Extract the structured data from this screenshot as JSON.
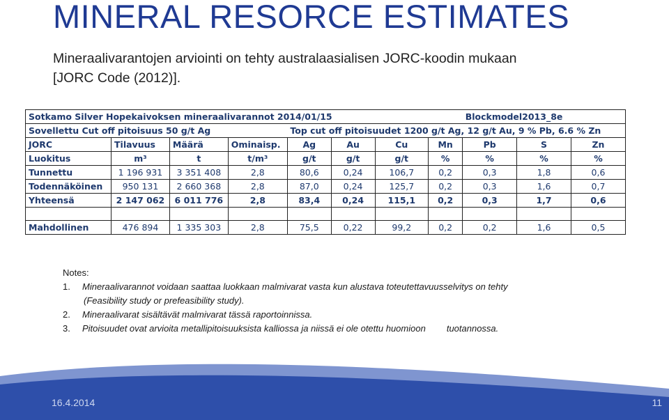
{
  "slide": {
    "title": "MINERAL RESORCE ESTIMATES",
    "subtitle_line1": "Mineraalivarantojen arviointi on tehty australaasialisen JORC-koodin mukaan",
    "subtitle_line2": "[JORC Code (2012)].",
    "date": "16.4.2014",
    "page_number": "11"
  },
  "table": {
    "title_left": "Sotkamo Silver Hopekaivoksen mineraalivarannot 2014/01/15",
    "title_right": "Blockmodel2013_8e",
    "cutoff_left": "Sovellettu Cut off pitoisuus 50 g/t Ag",
    "cutoff_right": "Top cut off pitoisuudet 1200 g/t Ag, 12 g/t Au, 9 % Pb, 6.6 % Zn",
    "header1": [
      "JORC",
      "Tilavuus",
      "Määrä",
      "Ominaisp.",
      "Ag",
      "Au",
      "Cu",
      "Mn",
      "Pb",
      "S",
      "Zn"
    ],
    "header2": [
      "Luokitus",
      "m³",
      "t",
      "t/m³",
      "g/t",
      "g/t",
      "g/t",
      "%",
      "%",
      "%",
      "%"
    ],
    "rows": [
      [
        "Tunnettu",
        "1 196 931",
        "3 351 408",
        "2,8",
        "80,6",
        "0,24",
        "106,7",
        "0,2",
        "0,3",
        "1,8",
        "0,6"
      ],
      [
        "Todennäköinen",
        "950 131",
        "2 660 368",
        "2,8",
        "87,0",
        "0,24",
        "125,7",
        "0,2",
        "0,3",
        "1,6",
        "0,7"
      ],
      [
        "Yhteensä",
        "2 147 062",
        "6 011 776",
        "2,8",
        "83,4",
        "0,24",
        "115,1",
        "0,2",
        "0,3",
        "1,7",
        "0,6"
      ]
    ],
    "possible_row": [
      "Mahdollinen",
      "476 894",
      "1 335 303",
      "2,8",
      "75,5",
      "0,22",
      "99,2",
      "0,2",
      "0,2",
      "1,6",
      "0,5"
    ]
  },
  "notes": {
    "heading": "Notes:",
    "items": [
      {
        "num": "1.",
        "text": "Mineraalivarannot voidaan saattaa luokkaan malmivarat vasta kun alustava toteutettavuusselvitys on tehty",
        "cont": "(Feasibility study or prefeasibility study)."
      },
      {
        "num": "2.",
        "text": "Mineraalivarat sisältävät malmivarat tässä raportoinnissa."
      },
      {
        "num": "3.",
        "text": "Pitoisuudet ovat arvioita metallipitoisuuksista kalliossa ja niissä ei ole otettu huomioon",
        "tail": "tuotannossa."
      }
    ]
  },
  "colors": {
    "title": "#1f3a93",
    "table_text": "#1f3a6e",
    "wave_dark": "#2e4faa",
    "wave_light": "#7f95d0"
  }
}
